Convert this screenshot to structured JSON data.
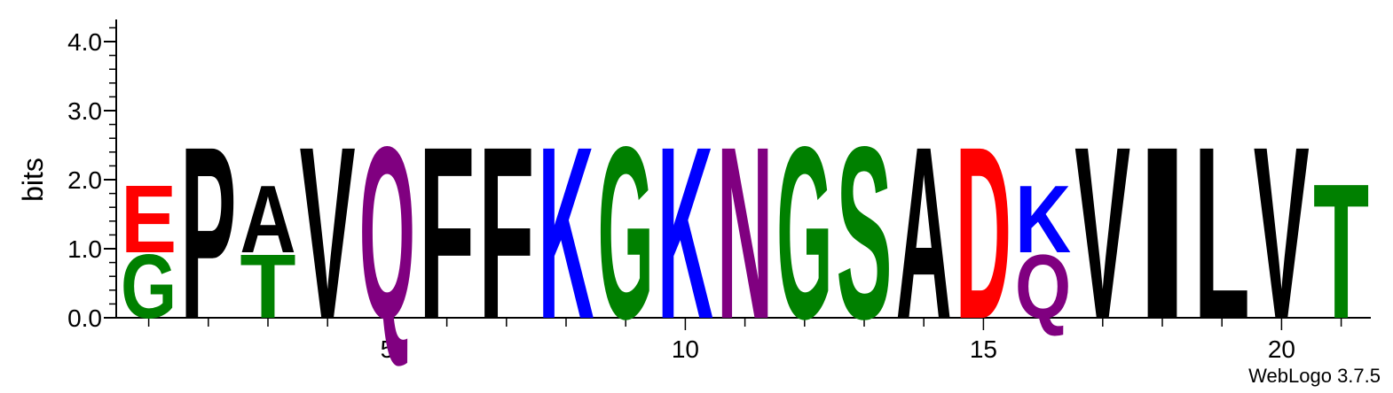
{
  "chart_data": {
    "type": "sequence-logo",
    "ylabel": "bits",
    "ylim": [
      0,
      4.32
    ],
    "y_ticks": [
      "0.0",
      "1.0",
      "2.0",
      "3.0",
      "4.0"
    ],
    "x_ticks": [
      "5",
      "10",
      "15",
      "20"
    ],
    "x_tick_positions": [
      5,
      10,
      15,
      20
    ],
    "positions": [
      {
        "pos": 1,
        "stack": [
          {
            "letter": "G",
            "bits": 0.95
          },
          {
            "letter": "E",
            "bits": 1.0
          }
        ]
      },
      {
        "pos": 2,
        "stack": [
          {
            "letter": "P",
            "bits": 2.55
          }
        ]
      },
      {
        "pos": 3,
        "stack": [
          {
            "letter": "T",
            "bits": 0.95
          },
          {
            "letter": "A",
            "bits": 1.0
          }
        ]
      },
      {
        "pos": 4,
        "stack": [
          {
            "letter": "V",
            "bits": 2.55
          }
        ]
      },
      {
        "pos": 5,
        "stack": [
          {
            "letter": "Q",
            "bits": 2.55
          }
        ]
      },
      {
        "pos": 6,
        "stack": [
          {
            "letter": "F",
            "bits": 2.55
          }
        ]
      },
      {
        "pos": 7,
        "stack": [
          {
            "letter": "F",
            "bits": 2.55
          }
        ]
      },
      {
        "pos": 8,
        "stack": [
          {
            "letter": "K",
            "bits": 2.55
          }
        ]
      },
      {
        "pos": 9,
        "stack": [
          {
            "letter": "G",
            "bits": 2.55
          }
        ]
      },
      {
        "pos": 10,
        "stack": [
          {
            "letter": "K",
            "bits": 2.55
          }
        ]
      },
      {
        "pos": 11,
        "stack": [
          {
            "letter": "N",
            "bits": 2.55
          }
        ]
      },
      {
        "pos": 12,
        "stack": [
          {
            "letter": "G",
            "bits": 2.55
          }
        ]
      },
      {
        "pos": 13,
        "stack": [
          {
            "letter": "S",
            "bits": 2.55
          }
        ]
      },
      {
        "pos": 14,
        "stack": [
          {
            "letter": "A",
            "bits": 2.55
          }
        ]
      },
      {
        "pos": 15,
        "stack": [
          {
            "letter": "D",
            "bits": 2.55
          }
        ]
      },
      {
        "pos": 16,
        "stack": [
          {
            "letter": "Q",
            "bits": 0.95
          },
          {
            "letter": "K",
            "bits": 1.0
          }
        ]
      },
      {
        "pos": 17,
        "stack": [
          {
            "letter": "V",
            "bits": 2.55
          }
        ]
      },
      {
        "pos": 18,
        "stack": [
          {
            "letter": "I",
            "bits": 2.55
          }
        ]
      },
      {
        "pos": 19,
        "stack": [
          {
            "letter": "L",
            "bits": 2.55
          }
        ]
      },
      {
        "pos": 20,
        "stack": [
          {
            "letter": "V",
            "bits": 2.55
          }
        ]
      },
      {
        "pos": 21,
        "stack": [
          {
            "letter": "T",
            "bits": 2.0
          }
        ]
      }
    ],
    "colors": {
      "A": "#000000",
      "V": "#000000",
      "L": "#000000",
      "I": "#000000",
      "P": "#000000",
      "F": "#000000",
      "W": "#000000",
      "M": "#000000",
      "G": "#008000",
      "S": "#008000",
      "T": "#008000",
      "Y": "#008000",
      "C": "#008000",
      "N": "#800080",
      "Q": "#800080",
      "K": "#0000ff",
      "R": "#0000ff",
      "H": "#0000ff",
      "D": "#ff0000",
      "E": "#ff0000"
    }
  },
  "footer": {
    "credit": "WebLogo 3.7.5"
  }
}
